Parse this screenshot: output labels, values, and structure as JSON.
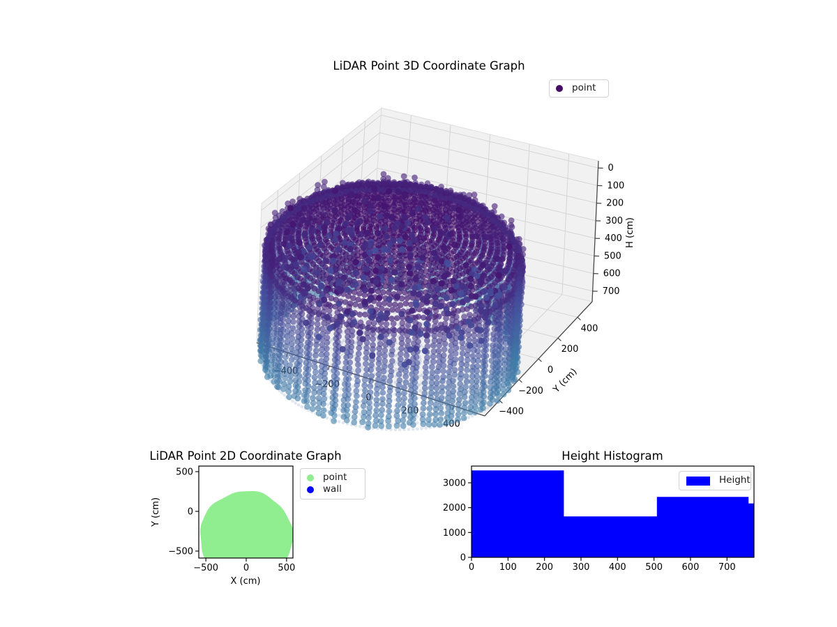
{
  "figure": {
    "background": "#ffffff"
  },
  "colors": {
    "hist_bar": "#0000ff",
    "point_2d": "#90ee90",
    "wall_2d": "#0000ff",
    "cloud_top": "#440a68",
    "cloud_mid": "#454e9c",
    "cloud_bottom": "#3f7fa8",
    "floor_haze": "#6487b3",
    "legend_marker_3d": "#440a68",
    "pane": "#f1f1f2",
    "grid": "#d2d2d2",
    "axis_line": "#4a4a4a"
  },
  "plot3d": {
    "title": "LiDAR Point 3D Coordinate Graph",
    "legend": [
      {
        "label": "point"
      }
    ],
    "x_axis": {
      "label": "",
      "tick_labels": [
        "−400",
        "−200",
        "0",
        "200",
        "400"
      ],
      "tick_values": [
        -400,
        -200,
        0,
        200,
        400
      ],
      "range": [
        -550,
        550
      ]
    },
    "y_axis": {
      "label": "Y (cm)",
      "tick_labels": [
        "−400",
        "−200",
        "0",
        "200",
        "400"
      ],
      "tick_values": [
        -400,
        -200,
        0,
        200,
        400
      ],
      "range": [
        -550,
        550
      ]
    },
    "z_axis": {
      "label": "H (cm)",
      "tick_labels": [
        "0",
        "100",
        "200",
        "300",
        "400",
        "500",
        "600",
        "700"
      ],
      "tick_values": [
        0,
        100,
        200,
        300,
        400,
        500,
        600,
        700
      ],
      "range": [
        -40,
        760
      ]
    }
  },
  "plot2d": {
    "title": "LiDAR Point 2D Coordinate Graph",
    "legend": [
      {
        "label": "point"
      },
      {
        "label": "wall"
      }
    ],
    "x_axis": {
      "label": "X (cm)",
      "tick_labels": [
        "−500",
        "0",
        "500"
      ],
      "tick_values": [
        -500,
        0,
        500
      ],
      "range": [
        -582,
        565
      ]
    },
    "y_axis": {
      "label": "Y (cm)",
      "tick_labels": [
        "−500",
        "0",
        "500"
      ],
      "tick_values": [
        -500,
        0,
        500
      ],
      "range": [
        -595,
        551
      ]
    }
  },
  "hist": {
    "title": "Height Histogram",
    "legend": [
      {
        "label": "Height"
      }
    ],
    "x_axis": {
      "tick_labels": [
        "0",
        "100",
        "200",
        "300",
        "400",
        "500",
        "600",
        "700"
      ],
      "tick_values": [
        0,
        100,
        200,
        300,
        400,
        500,
        600,
        700
      ],
      "range": [
        0,
        774
      ]
    },
    "y_axis": {
      "tick_labels": [
        "0",
        "1000",
        "2000",
        "3000"
      ],
      "tick_values": [
        0,
        1000,
        2000,
        3000
      ],
      "range": [
        0,
        3673
      ]
    }
  },
  "chart_data": [
    {
      "type": "scatter",
      "projection": "3d",
      "title": "LiDAR Point 3D Coordinate Graph",
      "xlabel": "",
      "ylabel": "Y (cm)",
      "zlabel": "H (cm)",
      "xlim": [
        -550,
        550
      ],
      "ylim": [
        -550,
        550
      ],
      "zlim": [
        0,
        700
      ],
      "z_axis_inverted": true,
      "legend_position": "upper right",
      "series": [
        {
          "name": "point",
          "color_by": "height_cm",
          "colormap_stops": [
            "#440a68",
            "#454e9c",
            "#3f7fa8"
          ],
          "structure": {
            "description": "LiDAR room scan: dark-purple ceiling dome cap at H≈0, vertical wall point columns descending to H≈700, sparse dark interior noise points, faint concentric floor scan rings",
            "footprint": {
              "shape": "circle",
              "center_x_cm": 0,
              "center_y_cm": -295,
              "radius_cm": 550
            },
            "height_range_cm": [
              0,
              700
            ],
            "ceiling_cap_sag_cm": 165
          }
        }
      ]
    },
    {
      "type": "scatter",
      "title": "LiDAR Point 2D Coordinate Graph",
      "xlabel": "X (cm)",
      "ylabel": "Y (cm)",
      "xlim": [
        -582,
        565
      ],
      "ylim": [
        -595,
        551
      ],
      "legend_position": "outside upper right",
      "series": [
        {
          "name": "point",
          "color": "#90ee90",
          "region": {
            "shape": "disc",
            "center_x_cm": 0,
            "center_y_cm": -320,
            "radius_cm": 575,
            "top_y_cm": 255,
            "clipped_at_bottom": true
          }
        },
        {
          "name": "wall",
          "color": "#0000ff",
          "visible_points": 0
        }
      ]
    },
    {
      "type": "histogram",
      "title": "Height Histogram",
      "series_name": "Height",
      "color": "#0000ff",
      "bin_edges": [
        0,
        253,
        508,
        759,
        774
      ],
      "counts": [
        3500,
        1650,
        2430,
        2170
      ],
      "xlim": [
        0,
        774
      ],
      "ylim": [
        0,
        3673
      ],
      "xticks": [
        0,
        100,
        200,
        300,
        400,
        500,
        600,
        700
      ],
      "yticks": [
        0,
        1000,
        2000,
        3000
      ],
      "legend_position": "upper right"
    }
  ]
}
